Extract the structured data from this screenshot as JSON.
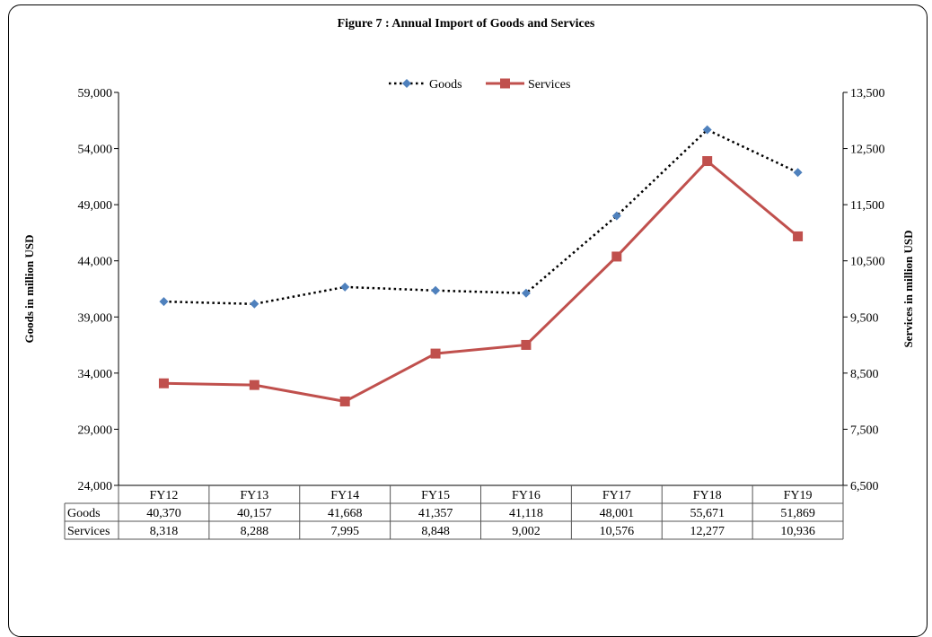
{
  "chart_data": {
    "type": "line",
    "title": "Figure  7 : Annual Import of Goods and Services",
    "categories": [
      "FY12",
      "FY13",
      "FY14",
      "FY15",
      "FY16",
      "FY17",
      "FY18",
      "FY19"
    ],
    "series": [
      {
        "name": "Goods",
        "axis": "left",
        "values": [
          40370,
          40157,
          41668,
          41357,
          41118,
          48001,
          55671,
          51869
        ],
        "labels": [
          "40,370",
          "40,157",
          "41,668",
          "41,357",
          "41,118",
          "48,001",
          "55,671",
          "51,869"
        ],
        "color": "#4F81BD",
        "line_color": "#000000",
        "line_style": "dotted",
        "marker": "diamond"
      },
      {
        "name": "Services",
        "axis": "right",
        "values": [
          8318,
          8288,
          7995,
          8848,
          9002,
          10576,
          12277,
          10936
        ],
        "labels": [
          "8,318",
          "8,288",
          "7,995",
          "8,848",
          "9,002",
          "10,576",
          "12,277",
          "10,936"
        ],
        "color": "#C0504D",
        "line_style": "solid",
        "marker": "square"
      }
    ],
    "ylabel_left": "Goods in million USD",
    "ylabel_right": "Services in million  USD",
    "ylim_left": [
      24000,
      59000
    ],
    "ylim_right": [
      6500,
      13500
    ],
    "yticks_left": [
      "24,000",
      "29,000",
      "34,000",
      "39,000",
      "44,000",
      "49,000",
      "54,000",
      "59,000"
    ],
    "yticks_right": [
      "6,500",
      "7,500",
      "8,500",
      "9,500",
      "10,500",
      "11,500",
      "12,500",
      "13,500"
    ],
    "legend_position": "top-center",
    "data_table": true,
    "grid": false
  }
}
